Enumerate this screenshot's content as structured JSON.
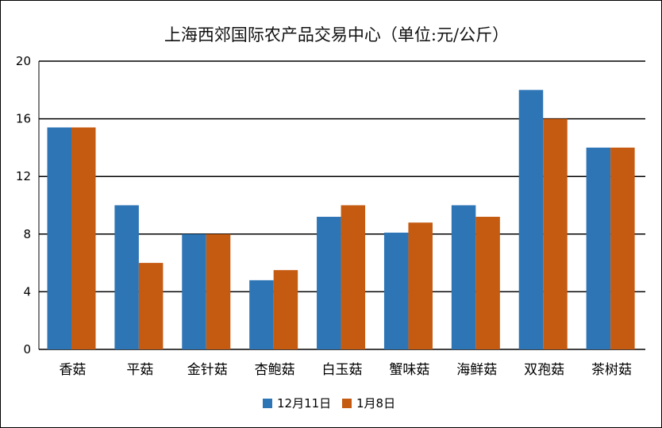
{
  "chart_data": {
    "type": "bar",
    "title": "上海西郊国际农产品交易中心（单位:元/公斤）",
    "xlabel": "",
    "ylabel": "",
    "categories": [
      "香菇",
      "平菇",
      "金针菇",
      "杏鲍菇",
      "白玉菇",
      "蟹味菇",
      "海鲜菇",
      "双孢菇",
      "茶树菇"
    ],
    "series": [
      {
        "name": "12月11日",
        "color": "#2e75b6",
        "values": [
          15.4,
          10,
          8,
          4.8,
          9.2,
          8.1,
          10,
          18,
          14
        ]
      },
      {
        "name": "1月8日",
        "color": "#c55a11",
        "values": [
          15.4,
          6,
          8,
          5.5,
          10,
          8.8,
          9.2,
          16,
          14
        ]
      }
    ],
    "ylim": [
      0,
      20
    ],
    "yticks": [
      0,
      4,
      8,
      12,
      16,
      20
    ],
    "grid": true,
    "legend_position": "bottom"
  }
}
